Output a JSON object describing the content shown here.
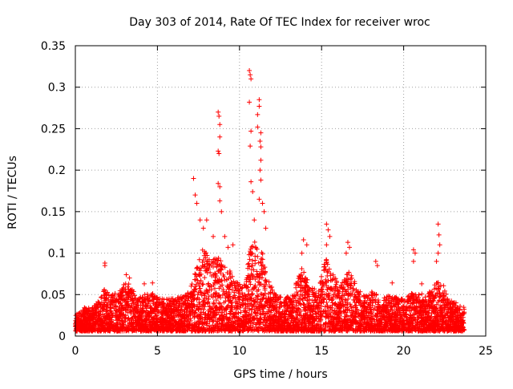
{
  "chart_data": {
    "type": "scatter",
    "title": "Day 303 of 2014, Rate Of TEC Index for receiver wroc",
    "xlabel": "GPS time / hours",
    "ylabel": "ROTI / TECUs",
    "xlim": [
      0,
      25
    ],
    "ylim": [
      0,
      0.35
    ],
    "x_ticks": [
      0,
      5,
      10,
      15,
      20,
      25
    ],
    "y_ticks": [
      0,
      0.05,
      0.1,
      0.15,
      0.2,
      0.25,
      0.3,
      0.35
    ],
    "x_tick_labels": [
      "0",
      "5",
      "10",
      "15",
      "20",
      "25"
    ],
    "y_tick_labels": [
      "0",
      "0.05",
      "0.1",
      "0.15",
      "0.2",
      "0.25",
      "0.3",
      "0.35"
    ],
    "grid": true,
    "marker": "+",
    "series_color": "#ff0000",
    "x_range_of_data": [
      0,
      23.7
    ],
    "notable_points": [
      {
        "x": 1.8,
        "y": 0.088
      },
      {
        "x": 1.8,
        "y": 0.085
      },
      {
        "x": 3.1,
        "y": 0.074
      },
      {
        "x": 3.3,
        "y": 0.07
      },
      {
        "x": 4.2,
        "y": 0.063
      },
      {
        "x": 4.7,
        "y": 0.064
      },
      {
        "x": 7.2,
        "y": 0.19
      },
      {
        "x": 7.3,
        "y": 0.17
      },
      {
        "x": 7.4,
        "y": 0.16
      },
      {
        "x": 7.6,
        "y": 0.14
      },
      {
        "x": 7.8,
        "y": 0.13
      },
      {
        "x": 8.0,
        "y": 0.14
      },
      {
        "x": 8.4,
        "y": 0.12
      },
      {
        "x": 8.7,
        "y": 0.27
      },
      {
        "x": 8.75,
        "y": 0.265
      },
      {
        "x": 8.8,
        "y": 0.255
      },
      {
        "x": 8.8,
        "y": 0.24
      },
      {
        "x": 8.7,
        "y": 0.223
      },
      {
        "x": 8.75,
        "y": 0.22
      },
      {
        "x": 8.7,
        "y": 0.184
      },
      {
        "x": 8.8,
        "y": 0.18
      },
      {
        "x": 8.8,
        "y": 0.163
      },
      {
        "x": 8.9,
        "y": 0.15
      },
      {
        "x": 9.1,
        "y": 0.12
      },
      {
        "x": 9.3,
        "y": 0.107
      },
      {
        "x": 9.6,
        "y": 0.11
      },
      {
        "x": 10.6,
        "y": 0.32
      },
      {
        "x": 10.65,
        "y": 0.315
      },
      {
        "x": 10.7,
        "y": 0.31
      },
      {
        "x": 10.6,
        "y": 0.282
      },
      {
        "x": 11.2,
        "y": 0.285
      },
      {
        "x": 11.2,
        "y": 0.277
      },
      {
        "x": 11.1,
        "y": 0.267
      },
      {
        "x": 11.1,
        "y": 0.252
      },
      {
        "x": 10.7,
        "y": 0.247
      },
      {
        "x": 11.3,
        "y": 0.245
      },
      {
        "x": 11.25,
        "y": 0.235
      },
      {
        "x": 10.65,
        "y": 0.229
      },
      {
        "x": 11.3,
        "y": 0.228
      },
      {
        "x": 11.3,
        "y": 0.212
      },
      {
        "x": 11.25,
        "y": 0.2
      },
      {
        "x": 11.3,
        "y": 0.188
      },
      {
        "x": 10.7,
        "y": 0.186
      },
      {
        "x": 10.8,
        "y": 0.174
      },
      {
        "x": 11.2,
        "y": 0.165
      },
      {
        "x": 11.4,
        "y": 0.16
      },
      {
        "x": 11.5,
        "y": 0.15
      },
      {
        "x": 10.9,
        "y": 0.14
      },
      {
        "x": 11.6,
        "y": 0.13
      },
      {
        "x": 13.9,
        "y": 0.116
      },
      {
        "x": 14.1,
        "y": 0.11
      },
      {
        "x": 13.8,
        "y": 0.1
      },
      {
        "x": 15.3,
        "y": 0.135
      },
      {
        "x": 15.4,
        "y": 0.128
      },
      {
        "x": 15.5,
        "y": 0.12
      },
      {
        "x": 15.3,
        "y": 0.11
      },
      {
        "x": 16.6,
        "y": 0.113
      },
      {
        "x": 16.7,
        "y": 0.107
      },
      {
        "x": 16.5,
        "y": 0.1
      },
      {
        "x": 18.3,
        "y": 0.09
      },
      {
        "x": 18.4,
        "y": 0.085
      },
      {
        "x": 19.3,
        "y": 0.064
      },
      {
        "x": 20.6,
        "y": 0.104
      },
      {
        "x": 20.7,
        "y": 0.1
      },
      {
        "x": 20.6,
        "y": 0.09
      },
      {
        "x": 21.1,
        "y": 0.063
      },
      {
        "x": 22.1,
        "y": 0.135
      },
      {
        "x": 22.15,
        "y": 0.122
      },
      {
        "x": 22.2,
        "y": 0.11
      },
      {
        "x": 22.1,
        "y": 0.1
      },
      {
        "x": 22.0,
        "y": 0.09
      }
    ],
    "activity_envelope": [
      {
        "x": 0,
        "y": 0.025
      },
      {
        "x": 0.5,
        "y": 0.035
      },
      {
        "x": 1.0,
        "y": 0.033
      },
      {
        "x": 1.5,
        "y": 0.045
      },
      {
        "x": 1.8,
        "y": 0.06
      },
      {
        "x": 2.2,
        "y": 0.05
      },
      {
        "x": 2.6,
        "y": 0.055
      },
      {
        "x": 3.0,
        "y": 0.065
      },
      {
        "x": 3.4,
        "y": 0.062
      },
      {
        "x": 3.8,
        "y": 0.045
      },
      {
        "x": 4.2,
        "y": 0.05
      },
      {
        "x": 4.7,
        "y": 0.052
      },
      {
        "x": 5.2,
        "y": 0.045
      },
      {
        "x": 5.6,
        "y": 0.047
      },
      {
        "x": 6.0,
        "y": 0.045
      },
      {
        "x": 6.5,
        "y": 0.048
      },
      {
        "x": 7.0,
        "y": 0.055
      },
      {
        "x": 7.4,
        "y": 0.09
      },
      {
        "x": 7.8,
        "y": 0.11
      },
      {
        "x": 8.2,
        "y": 0.09
      },
      {
        "x": 8.7,
        "y": 0.1
      },
      {
        "x": 9.2,
        "y": 0.085
      },
      {
        "x": 9.7,
        "y": 0.07
      },
      {
        "x": 10.2,
        "y": 0.06
      },
      {
        "x": 10.7,
        "y": 0.11
      },
      {
        "x": 11.2,
        "y": 0.12
      },
      {
        "x": 11.7,
        "y": 0.07
      },
      {
        "x": 12.2,
        "y": 0.05
      },
      {
        "x": 12.7,
        "y": 0.045
      },
      {
        "x": 13.2,
        "y": 0.05
      },
      {
        "x": 13.8,
        "y": 0.085
      },
      {
        "x": 14.3,
        "y": 0.06
      },
      {
        "x": 14.8,
        "y": 0.055
      },
      {
        "x": 15.3,
        "y": 0.1
      },
      {
        "x": 15.8,
        "y": 0.07
      },
      {
        "x": 16.3,
        "y": 0.065
      },
      {
        "x": 16.7,
        "y": 0.085
      },
      {
        "x": 17.2,
        "y": 0.055
      },
      {
        "x": 17.7,
        "y": 0.05
      },
      {
        "x": 18.2,
        "y": 0.055
      },
      {
        "x": 18.7,
        "y": 0.045
      },
      {
        "x": 19.2,
        "y": 0.05
      },
      {
        "x": 19.7,
        "y": 0.045
      },
      {
        "x": 20.2,
        "y": 0.047
      },
      {
        "x": 20.7,
        "y": 0.055
      },
      {
        "x": 21.2,
        "y": 0.05
      },
      {
        "x": 21.7,
        "y": 0.055
      },
      {
        "x": 22.2,
        "y": 0.075
      },
      {
        "x": 22.7,
        "y": 0.045
      },
      {
        "x": 23.2,
        "y": 0.04
      },
      {
        "x": 23.7,
        "y": 0.035
      }
    ]
  }
}
